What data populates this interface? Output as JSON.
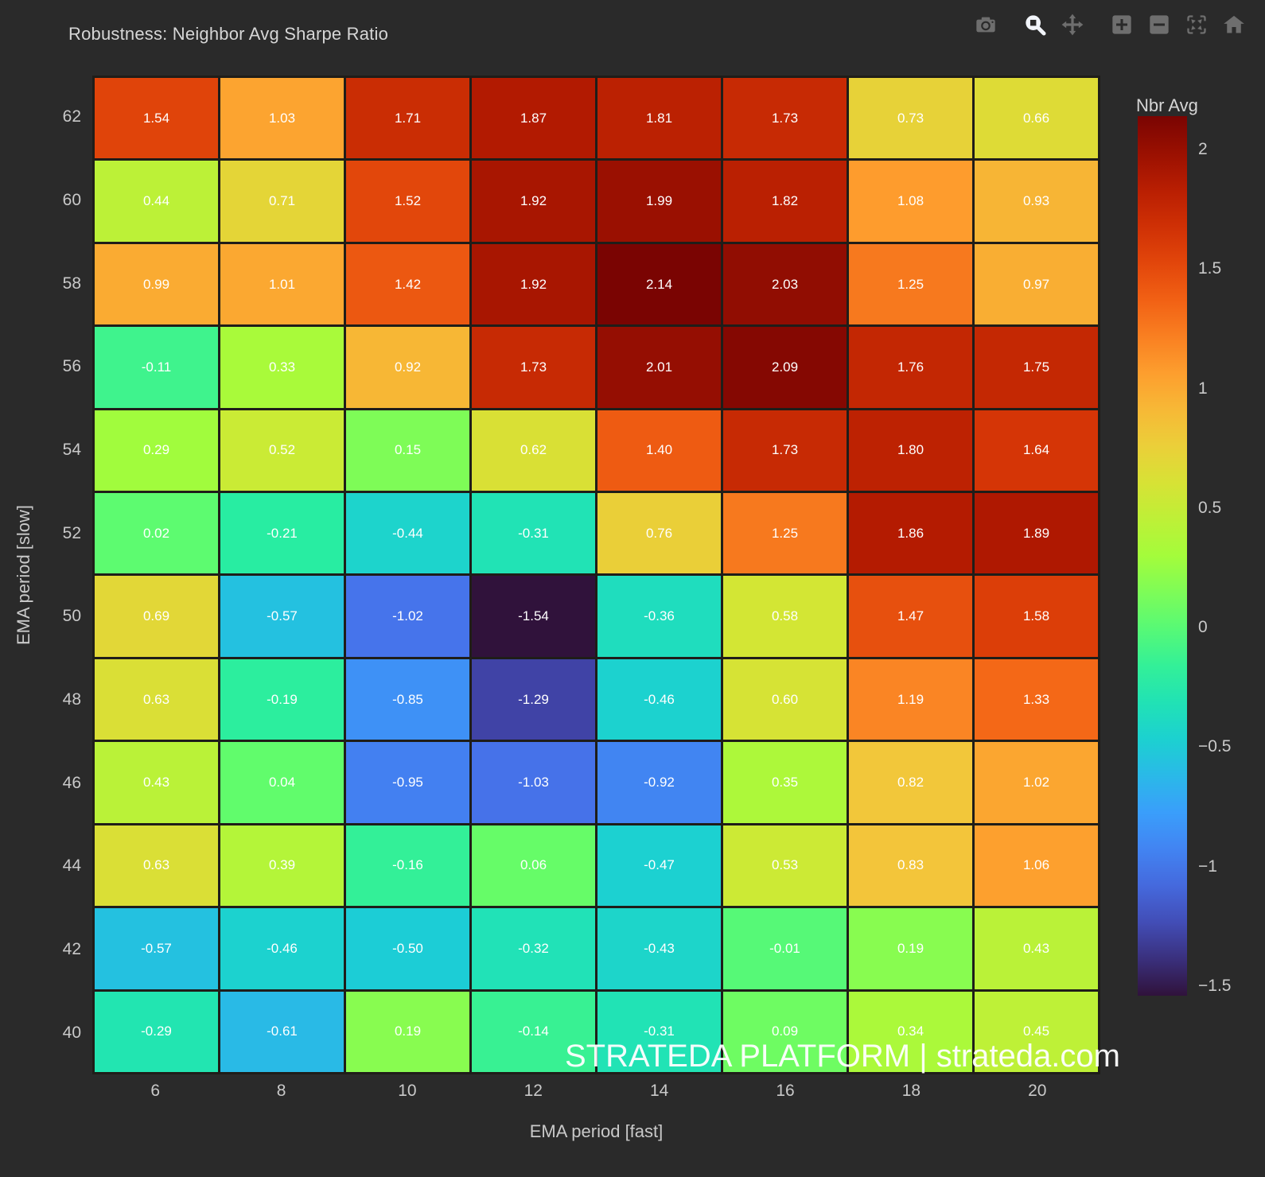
{
  "chart_data": {
    "type": "heatmap",
    "title": "Robustness: Neighbor Avg Sharpe Ratio",
    "xlabel": "EMA period [fast]",
    "ylabel": "EMA period [slow]",
    "x": [
      6,
      8,
      10,
      12,
      14,
      16,
      18,
      20
    ],
    "y": [
      62,
      60,
      58,
      56,
      54,
      52,
      50,
      48,
      46,
      44,
      42,
      40
    ],
    "z": [
      [
        1.54,
        1.03,
        1.71,
        1.87,
        1.81,
        1.73,
        0.73,
        0.66
      ],
      [
        0.44,
        0.71,
        1.52,
        1.92,
        1.99,
        1.82,
        1.08,
        0.93
      ],
      [
        0.99,
        1.01,
        1.42,
        1.92,
        2.14,
        2.03,
        1.25,
        0.97
      ],
      [
        -0.11,
        0.33,
        0.92,
        1.73,
        2.01,
        2.09,
        1.76,
        1.75
      ],
      [
        0.29,
        0.52,
        0.15,
        0.62,
        1.4,
        1.73,
        1.8,
        1.64
      ],
      [
        0.02,
        -0.21,
        -0.44,
        -0.31,
        0.76,
        1.25,
        1.86,
        1.89
      ],
      [
        0.69,
        -0.57,
        -1.02,
        -1.54,
        -0.36,
        0.58,
        1.47,
        1.58
      ],
      [
        0.63,
        -0.19,
        -0.85,
        -1.29,
        -0.46,
        0.6,
        1.19,
        1.33
      ],
      [
        0.43,
        0.04,
        -0.95,
        -1.03,
        -0.92,
        0.35,
        0.82,
        1.02
      ],
      [
        0.63,
        0.39,
        -0.16,
        0.06,
        -0.47,
        0.53,
        0.83,
        1.06
      ],
      [
        -0.57,
        -0.46,
        -0.5,
        -0.32,
        -0.43,
        -0.01,
        0.19,
        0.43
      ],
      [
        -0.29,
        -0.61,
        0.19,
        -0.14,
        -0.31,
        0.09,
        0.34,
        0.45
      ]
    ],
    "zmin": -1.54,
    "zmax": 2.14,
    "value_format": ".2f",
    "colorscale_name": "Turbo",
    "colorscale": [
      [
        0.0,
        "#30123b"
      ],
      [
        0.071,
        "#4145ab"
      ],
      [
        0.143,
        "#4675ed"
      ],
      [
        0.214,
        "#39a2fc"
      ],
      [
        0.286,
        "#1bcfd4"
      ],
      [
        0.357,
        "#24eca6"
      ],
      [
        0.429,
        "#61fc6c"
      ],
      [
        0.5,
        "#a4fc3b"
      ],
      [
        0.571,
        "#d1e834"
      ],
      [
        0.643,
        "#f3c63a"
      ],
      [
        0.714,
        "#fe9b2d"
      ],
      [
        0.786,
        "#f36315"
      ],
      [
        0.857,
        "#d93806"
      ],
      [
        0.929,
        "#b11901"
      ],
      [
        1.0,
        "#7a0402"
      ]
    ],
    "colorbar": {
      "title": "Nbr Avg",
      "ticks": [
        2,
        1.5,
        1,
        0.5,
        0,
        -0.5,
        -1,
        -1.5
      ]
    },
    "legend_position": "right",
    "grid": false
  },
  "toolbar": {
    "icons": [
      "camera",
      "zoom",
      "pan",
      "zoom-in",
      "zoom-out",
      "autoscale",
      "reset-home"
    ],
    "active_icon": "zoom"
  },
  "watermark": "STRATEDA PLATFORM | strateda.com",
  "colors": {
    "background": "#2a2a2a",
    "tick_text": "#c9c9c9",
    "cell_text": "#ffffff",
    "icon": "#6e6e6e",
    "icon_active": "#f2f5fa",
    "watermark": "#ffffff"
  }
}
